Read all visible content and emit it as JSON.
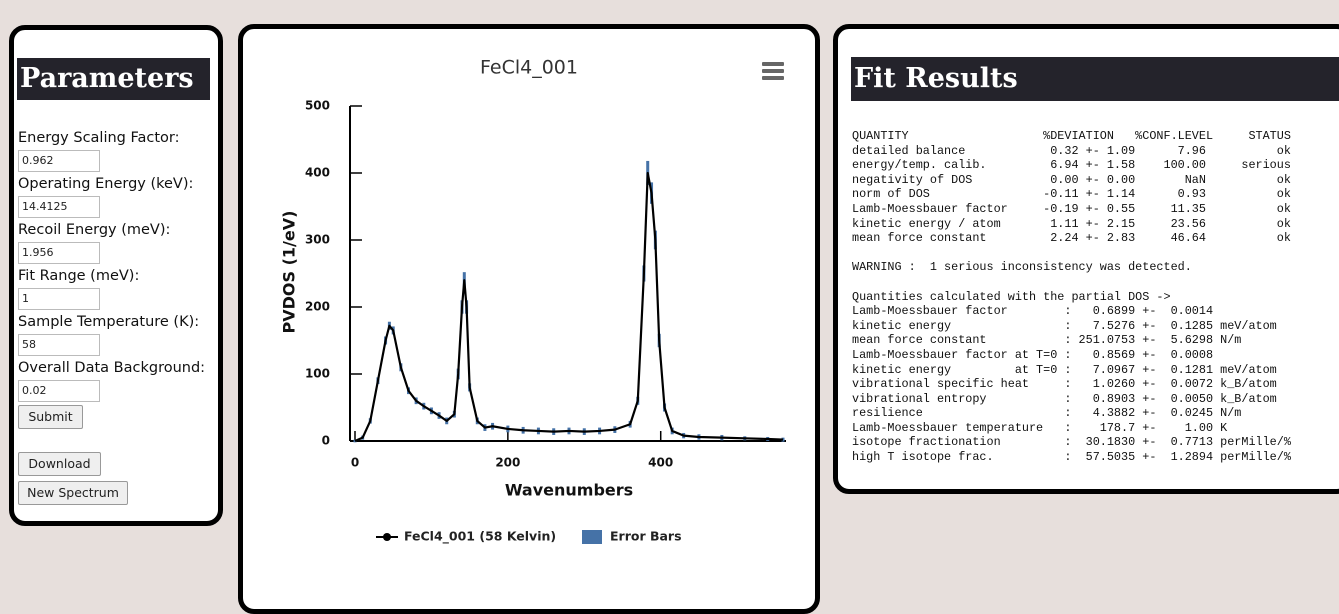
{
  "parameters": {
    "title": "Parameters",
    "fields": [
      {
        "label": "Energy Scaling Factor:",
        "value": "0.962"
      },
      {
        "label": "Operating Energy (keV):",
        "value": "14.4125"
      },
      {
        "label": "Recoil Energy (meV):",
        "value": "1.956"
      },
      {
        "label": "Fit Range (meV):",
        "value": "1"
      },
      {
        "label": "Sample Temperature (K):",
        "value": "58"
      },
      {
        "label": "Overall Data Background:",
        "value": "0.02"
      }
    ],
    "submit": "Submit",
    "download": "Download",
    "new_spectrum": "New Spectrum"
  },
  "chart_data": {
    "type": "line",
    "title": "FeCl4_001",
    "xlabel": "Wavenumbers",
    "ylabel": "PVDOS (1/eV)",
    "x": [
      0,
      10,
      20,
      30,
      40,
      45,
      50,
      60,
      70,
      80,
      90,
      100,
      110,
      120,
      130,
      135,
      140,
      143,
      146,
      150,
      160,
      170,
      180,
      200,
      220,
      240,
      260,
      280,
      300,
      320,
      340,
      360,
      370,
      378,
      383,
      388,
      393,
      398,
      405,
      415,
      430,
      450,
      480,
      510,
      540,
      560
    ],
    "series": [
      {
        "name": "FeCl4_001 (58 Kelvin)",
        "color": "#000000",
        "values": [
          0,
          5,
          30,
          90,
          150,
          172,
          165,
          110,
          75,
          60,
          52,
          45,
          38,
          30,
          40,
          100,
          200,
          240,
          200,
          80,
          30,
          20,
          22,
          18,
          16,
          15,
          14,
          15,
          14,
          15,
          17,
          25,
          60,
          250,
          400,
          370,
          300,
          150,
          50,
          15,
          8,
          6,
          5,
          4,
          3,
          2
        ]
      },
      {
        "name": "Error Bars",
        "color": "#4572a7",
        "values": [
          2,
          3,
          4,
          5,
          6,
          6,
          6,
          6,
          5,
          5,
          5,
          5,
          5,
          5,
          5,
          8,
          10,
          12,
          10,
          6,
          5,
          5,
          5,
          5,
          5,
          5,
          5,
          5,
          5,
          5,
          5,
          5,
          6,
          12,
          18,
          16,
          14,
          10,
          6,
          5,
          4,
          4,
          4,
          3,
          3,
          3
        ]
      }
    ],
    "xlim": [
      0,
      560
    ],
    "xticks": [
      0,
      200,
      400
    ],
    "ylim": [
      0,
      500
    ],
    "yticks": [
      0,
      100,
      200,
      300,
      400,
      500
    ]
  },
  "fit_results": {
    "title": "Fit Results",
    "table_lines": [
      "QUANTITY                   %DEVIATION   %CONF.LEVEL     STATUS",
      "detailed balance            0.32 +- 1.09      7.96          ok",
      "energy/temp. calib.         6.94 +- 1.58    100.00     serious",
      "negativity of DOS           0.00 +- 0.00       NaN          ok",
      "norm of DOS                -0.11 +- 1.14      0.93          ok",
      "Lamb-Moessbauer factor     -0.19 +- 0.55     11.35          ok",
      "kinetic energy / atom       1.11 +- 2.15     23.56          ok",
      "mean force constant         2.24 +- 2.83     46.64          ok"
    ],
    "warning": "WARNING :  1 serious inconsistency was detected.",
    "quantities_lines": [
      "Quantities calculated with the partial DOS ->",
      "Lamb-Moessbauer factor        :   0.6899 +-  0.0014",
      "kinetic energy                :   7.5276 +-  0.1285 meV/atom",
      "mean force constant           : 251.0753 +-  5.6298 N/m",
      "Lamb-Moessbauer factor at T=0 :   0.8569 +-  0.0008",
      "kinetic energy         at T=0 :   7.0967 +-  0.1281 meV/atom",
      "vibrational specific heat     :   1.0260 +-  0.0072 k_B/atom",
      "vibrational entropy           :   0.8903 +-  0.0050 k_B/atom",
      "resilience                    :   4.3882 +-  0.0245 N/m",
      "Lamb-Moessbauer temperature   :    178.7 +-    1.00 K",
      "isotope fractionation         :  30.1830 +-  0.7713 perMille/%",
      "high T isotope frac.          :  57.5035 +-  1.2894 perMille/%"
    ]
  }
}
